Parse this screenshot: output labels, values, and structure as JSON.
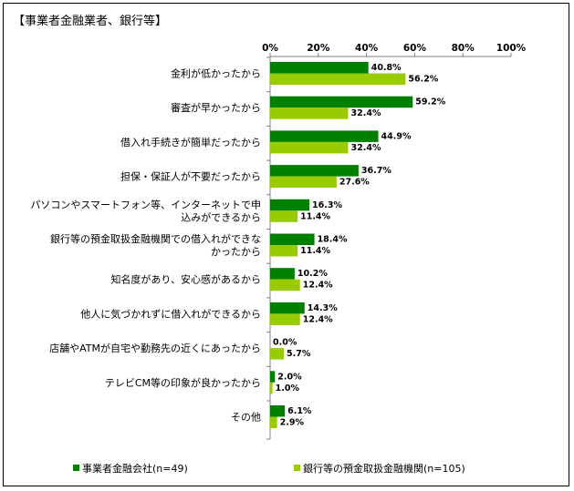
{
  "colors": {
    "series1": "#008000",
    "series2": "#99CC00",
    "axis": "#808080"
  },
  "chart_data": {
    "type": "bar",
    "orientation": "horizontal",
    "title": "【事業者金融業者、銀行等】",
    "xlim": [
      0,
      100
    ],
    "xticks": [
      "0%",
      "20%",
      "40%",
      "60%",
      "80%",
      "100%"
    ],
    "categories": [
      [
        "金利が低かったから"
      ],
      [
        "審査が早かったから"
      ],
      [
        "借入れ手続きが簡単だったから"
      ],
      [
        "担保・保証人が不要だったから"
      ],
      [
        "パソコンやスマートフォン等、インターネットで申",
        "込みができるから"
      ],
      [
        "銀行等の預金取扱金融機関での借入れができな",
        "かったから"
      ],
      [
        "知名度があり、安心感があるから"
      ],
      [
        "他人に気づかれずに借入れができるから"
      ],
      [
        "店舗やATMが自宅や勤務先の近くにあったから"
      ],
      [
        "テレビCM等の印象が良かったから"
      ],
      [
        "その他"
      ]
    ],
    "series": [
      {
        "name": "事業者金融会社(n=49)",
        "values": [
          40.8,
          59.2,
          44.9,
          36.7,
          16.3,
          18.4,
          10.2,
          14.3,
          0.0,
          2.0,
          6.1
        ]
      },
      {
        "name": "銀行等の預金取扱金融機関(n=105)",
        "values": [
          56.2,
          32.4,
          32.4,
          27.6,
          11.4,
          11.4,
          12.4,
          12.4,
          5.7,
          1.0,
          2.9
        ]
      }
    ],
    "legend": "bottom",
    "grid": false
  }
}
